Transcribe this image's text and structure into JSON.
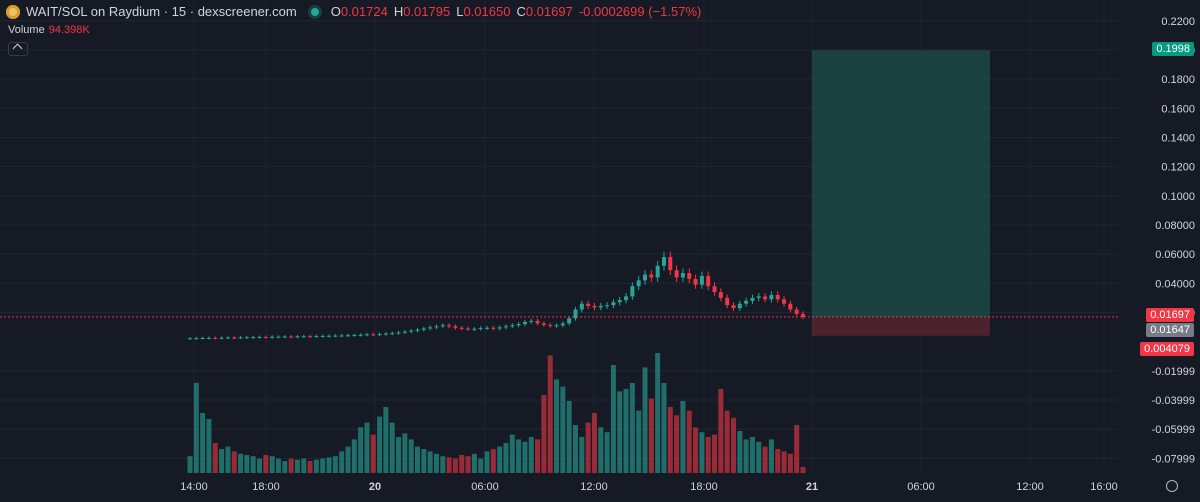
{
  "header": {
    "symbol": "WAIT/SOL on Raydium · 15 · dexscreener.com",
    "o_label": "O",
    "o_value": "0.01724",
    "h_label": "H",
    "h_value": "0.01795",
    "l_label": "L",
    "l_value": "0.01650",
    "c_label": "C",
    "c_value": "0.01697",
    "change": "-0.0002699 (−1.57%)",
    "volume_label": "Volume",
    "volume_value": "94.398K"
  },
  "price_tags": {
    "target": "0.1998",
    "last": "0.01697",
    "entry": "0.01647",
    "stop": "0.004079"
  },
  "colors": {
    "bg": "#161a25",
    "up": "#26a69a",
    "down": "#f23645",
    "profit_zone": "#1e4f47",
    "loss_zone": "#5a2530"
  },
  "chart_data": {
    "type": "candlestick",
    "x_ticks": [
      "14:00",
      "18:00",
      "20",
      "06:00",
      "12:00",
      "18:00",
      "21",
      "06:00",
      "12:00",
      "16:00"
    ],
    "y_ticks": [
      "0.2200",
      "0.2000",
      "0.1800",
      "0.1600",
      "0.1400",
      "0.1200",
      "0.1000",
      "0.08000",
      "0.06000",
      "0.04000",
      "0.02000",
      "-0.01999",
      "-0.03999",
      "-0.05999",
      "-0.07999"
    ],
    "ylim": [
      -0.088,
      0.226
    ],
    "position": {
      "target": 0.1998,
      "entry": 0.01647,
      "stop": 0.004079
    },
    "last_price": 0.01697,
    "candles_close": [
      0.0023,
      0.0024,
      0.0025,
      0.0026,
      0.0025,
      0.0027,
      0.0028,
      0.0027,
      0.0029,
      0.003,
      0.0031,
      0.0032,
      0.0031,
      0.0033,
      0.0034,
      0.0035,
      0.0034,
      0.0036,
      0.0037,
      0.0036,
      0.0038,
      0.0039,
      0.004,
      0.0041,
      0.0042,
      0.0044,
      0.0045,
      0.0047,
      0.005,
      0.0048,
      0.0052,
      0.0055,
      0.0058,
      0.0063,
      0.0068,
      0.0075,
      0.0082,
      0.009,
      0.0098,
      0.0105,
      0.0112,
      0.0105,
      0.0095,
      0.009,
      0.0085,
      0.0088,
      0.0093,
      0.0095,
      0.009,
      0.0098,
      0.0105,
      0.0112,
      0.012,
      0.0135,
      0.0142,
      0.0125,
      0.0115,
      0.0108,
      0.0112,
      0.0125,
      0.016,
      0.022,
      0.026,
      0.0245,
      0.0235,
      0.0245,
      0.025,
      0.027,
      0.0285,
      0.031,
      0.038,
      0.042,
      0.046,
      0.044,
      0.052,
      0.058,
      0.049,
      0.044,
      0.047,
      0.043,
      0.039,
      0.045,
      0.038,
      0.034,
      0.03,
      0.025,
      0.023,
      0.026,
      0.028,
      0.03,
      0.031,
      0.029,
      0.032,
      0.029,
      0.026,
      0.022,
      0.019,
      0.017
    ],
    "volume_rel": [
      0.14,
      0.75,
      0.5,
      0.45,
      0.25,
      0.2,
      0.22,
      0.18,
      0.16,
      0.15,
      0.14,
      0.12,
      0.15,
      0.14,
      0.12,
      0.1,
      0.12,
      0.11,
      0.12,
      0.1,
      0.11,
      0.12,
      0.13,
      0.14,
      0.18,
      0.22,
      0.28,
      0.38,
      0.42,
      0.32,
      0.47,
      0.55,
      0.42,
      0.3,
      0.33,
      0.28,
      0.22,
      0.2,
      0.18,
      0.16,
      0.14,
      0.13,
      0.12,
      0.15,
      0.14,
      0.16,
      0.12,
      0.18,
      0.2,
      0.22,
      0.25,
      0.32,
      0.28,
      0.26,
      0.3,
      0.28,
      0.65,
      0.98,
      0.78,
      0.72,
      0.6,
      0.4,
      0.3,
      0.42,
      0.5,
      0.38,
      0.34,
      0.9,
      0.68,
      0.7,
      0.75,
      0.52,
      0.88,
      0.62,
      1.0,
      0.75,
      0.55,
      0.48,
      0.6,
      0.52,
      0.38,
      0.34,
      0.3,
      0.32,
      0.7,
      0.52,
      0.46,
      0.35,
      0.28,
      0.3,
      0.26,
      0.22,
      0.28,
      0.2,
      0.18,
      0.16,
      0.4,
      0.05
    ]
  }
}
